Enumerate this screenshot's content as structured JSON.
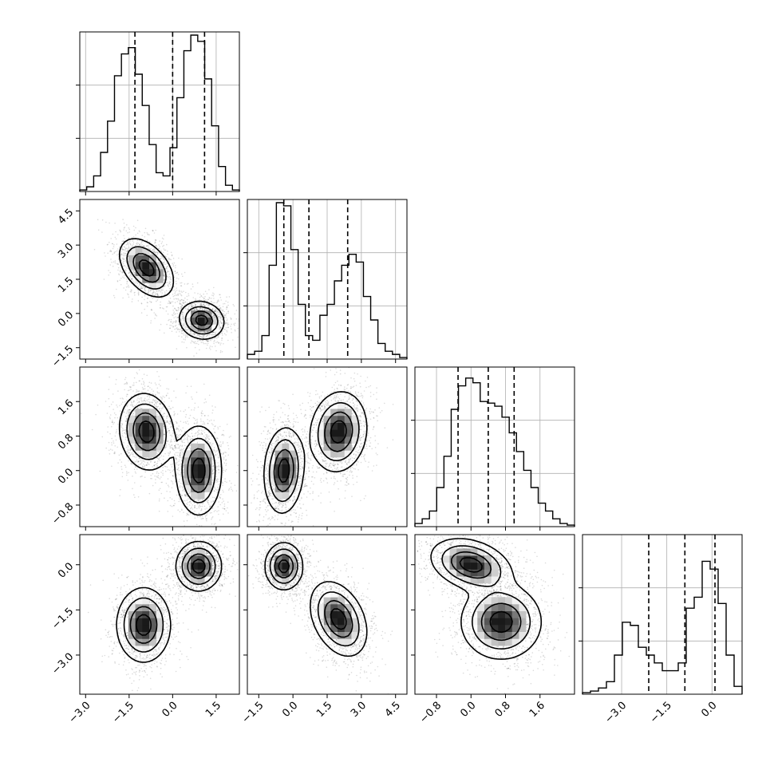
{
  "chart_data": {
    "type": "corner",
    "parameters": 4,
    "colors": {
      "line": "#000000",
      "grid": "#b0b0b0",
      "points": "#000000"
    },
    "grid": true,
    "quantiles": [
      [
        -1.3,
        0.0,
        1.1
      ],
      [
        -0.4,
        0.7,
        2.4
      ],
      [
        -0.3,
        0.4,
        1.0
      ],
      [
        -2.1,
        -0.9,
        0.1
      ]
    ],
    "axes": [
      {
        "range": [
          -3.2,
          2.3
        ],
        "ticks": [
          -3.0,
          -1.5,
          0.0,
          1.5
        ],
        "labels": [
          "−3.0",
          "−1.5",
          "0.0",
          "1.5"
        ]
      },
      {
        "range": [
          -2.0,
          5.0
        ],
        "ticks": [
          -1.5,
          0.0,
          1.5,
          3.0,
          4.5
        ],
        "labels": [
          "−1.5",
          "0.0",
          "1.5",
          "3.0",
          "4.5"
        ]
      },
      {
        "range": [
          -1.3,
          2.4
        ],
        "ticks": [
          -0.8,
          0.0,
          0.8,
          1.6
        ],
        "labels": [
          "−0.8",
          "0.0",
          "0.8",
          "1.6"
        ]
      },
      {
        "range": [
          -4.3,
          1.0
        ],
        "ticks": [
          -3.0,
          -1.5,
          0.0
        ],
        "labels": [
          "−3.0",
          "−1.5",
          "0.0"
        ]
      }
    ],
    "histograms": [
      [
        0.01,
        0.03,
        0.1,
        0.25,
        0.45,
        0.74,
        0.88,
        0.92,
        0.75,
        0.55,
        0.3,
        0.12,
        0.1,
        0.28,
        0.6,
        0.9,
        1.0,
        0.96,
        0.72,
        0.42,
        0.16,
        0.04,
        0.01
      ],
      [
        0.03,
        0.05,
        0.15,
        0.6,
        1.0,
        0.98,
        0.7,
        0.35,
        0.15,
        0.12,
        0.28,
        0.35,
        0.5,
        0.6,
        0.67,
        0.62,
        0.4,
        0.25,
        0.1,
        0.05,
        0.03,
        0.01
      ],
      [
        0.02,
        0.05,
        0.1,
        0.25,
        0.45,
        0.75,
        0.9,
        0.95,
        0.92,
        0.8,
        0.79,
        0.77,
        0.7,
        0.6,
        0.48,
        0.36,
        0.25,
        0.15,
        0.1,
        0.05,
        0.02,
        0.01
      ],
      [
        0.01,
        0.02,
        0.04,
        0.08,
        0.25,
        0.46,
        0.44,
        0.3,
        0.25,
        0.2,
        0.15,
        0.15,
        0.2,
        0.55,
        0.62,
        0.85,
        0.8,
        0.58,
        0.25,
        0.05
      ]
    ],
    "pairs": [
      {
        "x": 0,
        "y": 1,
        "modes": [
          {
            "mx": -0.9,
            "my": 2.0,
            "sx": 0.45,
            "sy": 0.62,
            "rho": -0.45,
            "w": 0.5
          },
          {
            "mx": 1.0,
            "my": -0.3,
            "sx": 0.37,
            "sy": 0.4,
            "rho": -0.1,
            "w": 0.5
          }
        ]
      },
      {
        "x": 0,
        "y": 2,
        "modes": [
          {
            "mx": -0.9,
            "my": 0.9,
            "sx": 0.45,
            "sy": 0.43,
            "rho": -0.1,
            "w": 0.5
          },
          {
            "mx": 0.9,
            "my": 0.0,
            "sx": 0.38,
            "sy": 0.5,
            "rho": 0.0,
            "w": 0.5
          }
        ]
      },
      {
        "x": 0,
        "y": 3,
        "modes": [
          {
            "mx": -1.0,
            "my": -2.0,
            "sx": 0.45,
            "sy": 0.6,
            "rho": 0.0,
            "w": 0.5
          },
          {
            "mx": 0.9,
            "my": -0.05,
            "sx": 0.38,
            "sy": 0.4,
            "rho": 0.0,
            "w": 0.5
          }
        ]
      },
      {
        "x": 1,
        "y": 2,
        "modes": [
          {
            "mx": -0.4,
            "my": 0.0,
            "sx": 0.42,
            "sy": 0.48,
            "rho": 0.1,
            "w": 0.5
          },
          {
            "mx": 2.0,
            "my": 0.9,
            "sx": 0.6,
            "sy": 0.45,
            "rho": 0.1,
            "w": 0.5
          }
        ]
      },
      {
        "x": 1,
        "y": 3,
        "modes": [
          {
            "mx": -0.4,
            "my": -0.05,
            "sx": 0.4,
            "sy": 0.38,
            "rho": 0.0,
            "w": 0.5
          },
          {
            "mx": 2.0,
            "my": -1.8,
            "sx": 0.6,
            "sy": 0.6,
            "rho": -0.35,
            "w": 0.5
          }
        ]
      },
      {
        "x": 2,
        "y": 3,
        "modes": [
          {
            "mx": 0.0,
            "my": 0.0,
            "sx": 0.45,
            "sy": 0.42,
            "rho": -0.3,
            "w": 0.5
          },
          {
            "mx": 0.7,
            "my": -1.9,
            "sx": 0.45,
            "sy": 0.6,
            "rho": 0.0,
            "w": 0.5
          }
        ]
      }
    ]
  }
}
